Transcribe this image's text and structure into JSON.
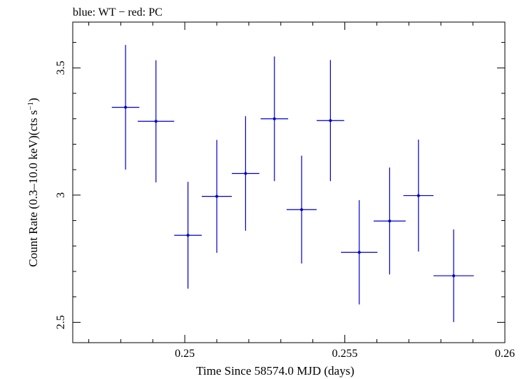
{
  "chart_data": {
    "type": "scatter",
    "title": "blue: WT − red: PC",
    "xlabel": "Time Since 58574.0 MJD (days)",
    "ylabel_main": "Count Rate (0.3–10.0 keV)(cts s",
    "ylabel_sup": "−1",
    "ylabel_close": ")",
    "xlim": [
      0.2465,
      0.26
    ],
    "ylim": [
      2.42,
      3.68
    ],
    "x_ticks": [
      0.25,
      0.255,
      0.26
    ],
    "x_tick_labels": [
      "0.25",
      "0.255",
      "0.26"
    ],
    "y_ticks": [
      2.5,
      3.0,
      3.5
    ],
    "y_tick_labels": [
      "2.5",
      "3",
      "3.5"
    ],
    "color_series": "#0000cc",
    "series": [
      {
        "points": [
          {
            "x": 0.24815,
            "xerr": 0.00043,
            "y": 3.345,
            "yerr": 0.245
          },
          {
            "x": 0.2491,
            "xerr": 0.00057,
            "y": 3.29,
            "yerr": 0.24
          },
          {
            "x": 0.2501,
            "xerr": 0.00043,
            "y": 2.842,
            "yerr": 0.21
          },
          {
            "x": 0.251,
            "xerr": 0.00047,
            "y": 2.995,
            "yerr": 0.222
          },
          {
            "x": 0.2519,
            "xerr": 0.00043,
            "y": 3.085,
            "yerr": 0.225
          },
          {
            "x": 0.2528,
            "xerr": 0.00043,
            "y": 3.3,
            "yerr": 0.245
          },
          {
            "x": 0.25365,
            "xerr": 0.00047,
            "y": 2.943,
            "yerr": 0.212
          },
          {
            "x": 0.25455,
            "xerr": 0.00043,
            "y": 3.293,
            "yerr": 0.238
          },
          {
            "x": 0.25545,
            "xerr": 0.00057,
            "y": 2.775,
            "yerr": 0.205
          },
          {
            "x": 0.2564,
            "xerr": 0.0005,
            "y": 2.898,
            "yerr": 0.21
          },
          {
            "x": 0.2573,
            "xerr": 0.00047,
            "y": 2.998,
            "yerr": 0.22
          },
          {
            "x": 0.2584,
            "xerr": 0.00063,
            "y": 2.683,
            "yerr": 0.182
          }
        ]
      }
    ]
  }
}
